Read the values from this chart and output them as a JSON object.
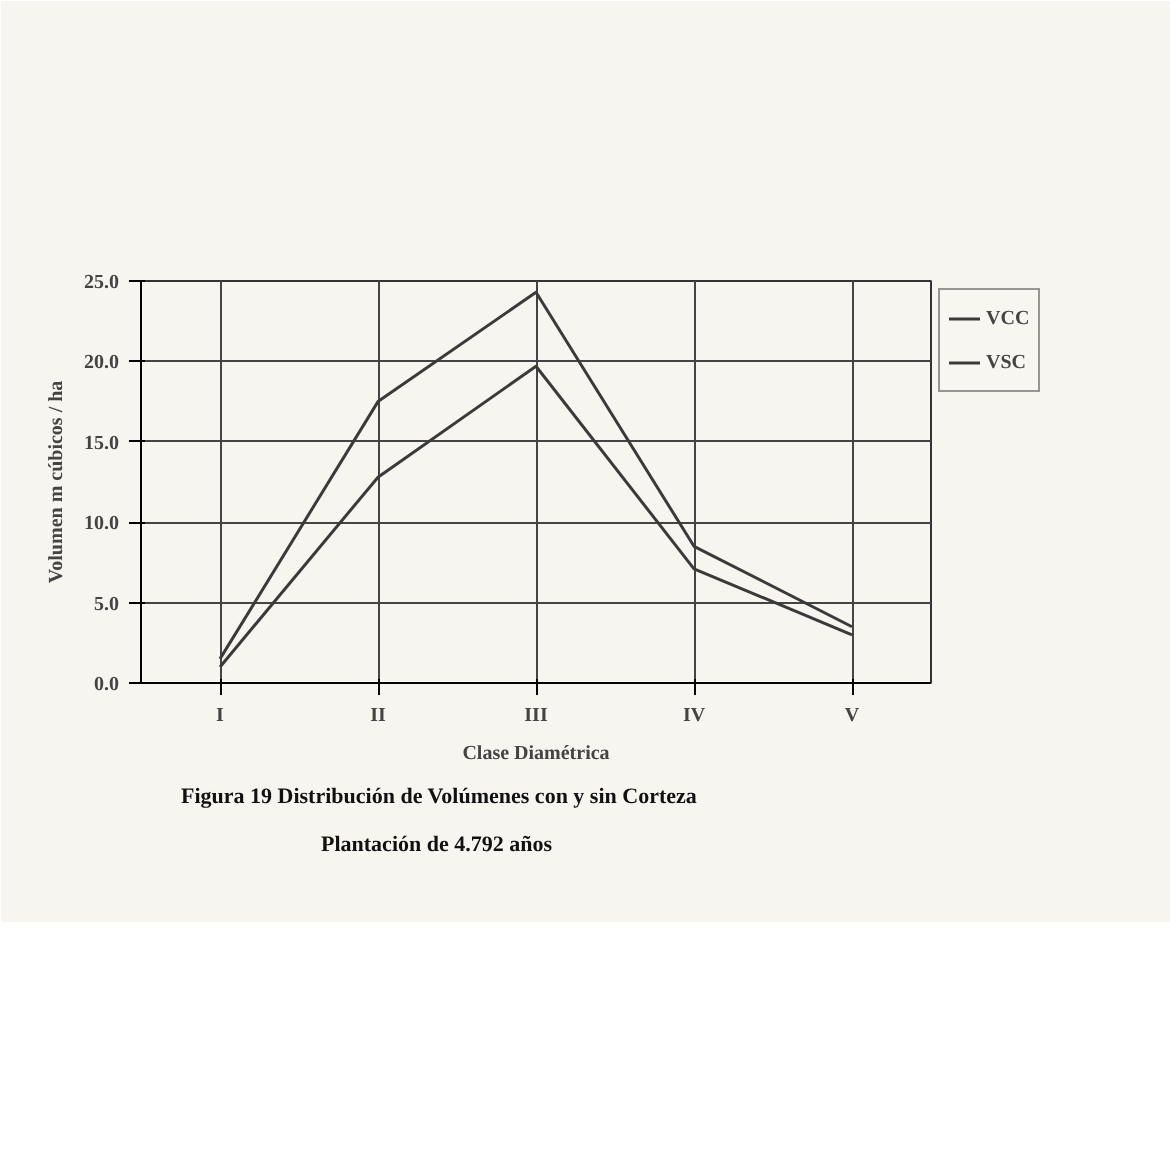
{
  "chart_data": {
    "type": "line",
    "title": "Figura 19 Distribución de Volúmenes con y sin Corteza",
    "subtitle": "Plantación de 4.792 años",
    "xlabel": "Clase Diamétrica",
    "ylabel": "Volumen m cúbicos / ha",
    "categories": [
      "I",
      "II",
      "III",
      "IV",
      "V"
    ],
    "series": [
      {
        "name": "VCC",
        "color": "#3a3a3a",
        "values": [
          1.5,
          17.5,
          24.3,
          8.5,
          3.5
        ]
      },
      {
        "name": "VSC",
        "color": "#3a3a3a",
        "values": [
          1.0,
          12.8,
          19.7,
          7.1,
          3.0
        ]
      }
    ],
    "ylim": [
      0,
      25
    ],
    "yticks": [
      {
        "value": 0,
        "label": "0.0"
      },
      {
        "value": 5,
        "label": "5.0"
      },
      {
        "value": 10,
        "label": "10.0"
      },
      {
        "value": 15,
        "label": "15.0"
      },
      {
        "value": 20,
        "label": "20.0"
      },
      {
        "value": 25,
        "label": "25.0"
      }
    ],
    "grid": true,
    "legend": "top right",
    "marker": "none",
    "line_style": "solid"
  }
}
